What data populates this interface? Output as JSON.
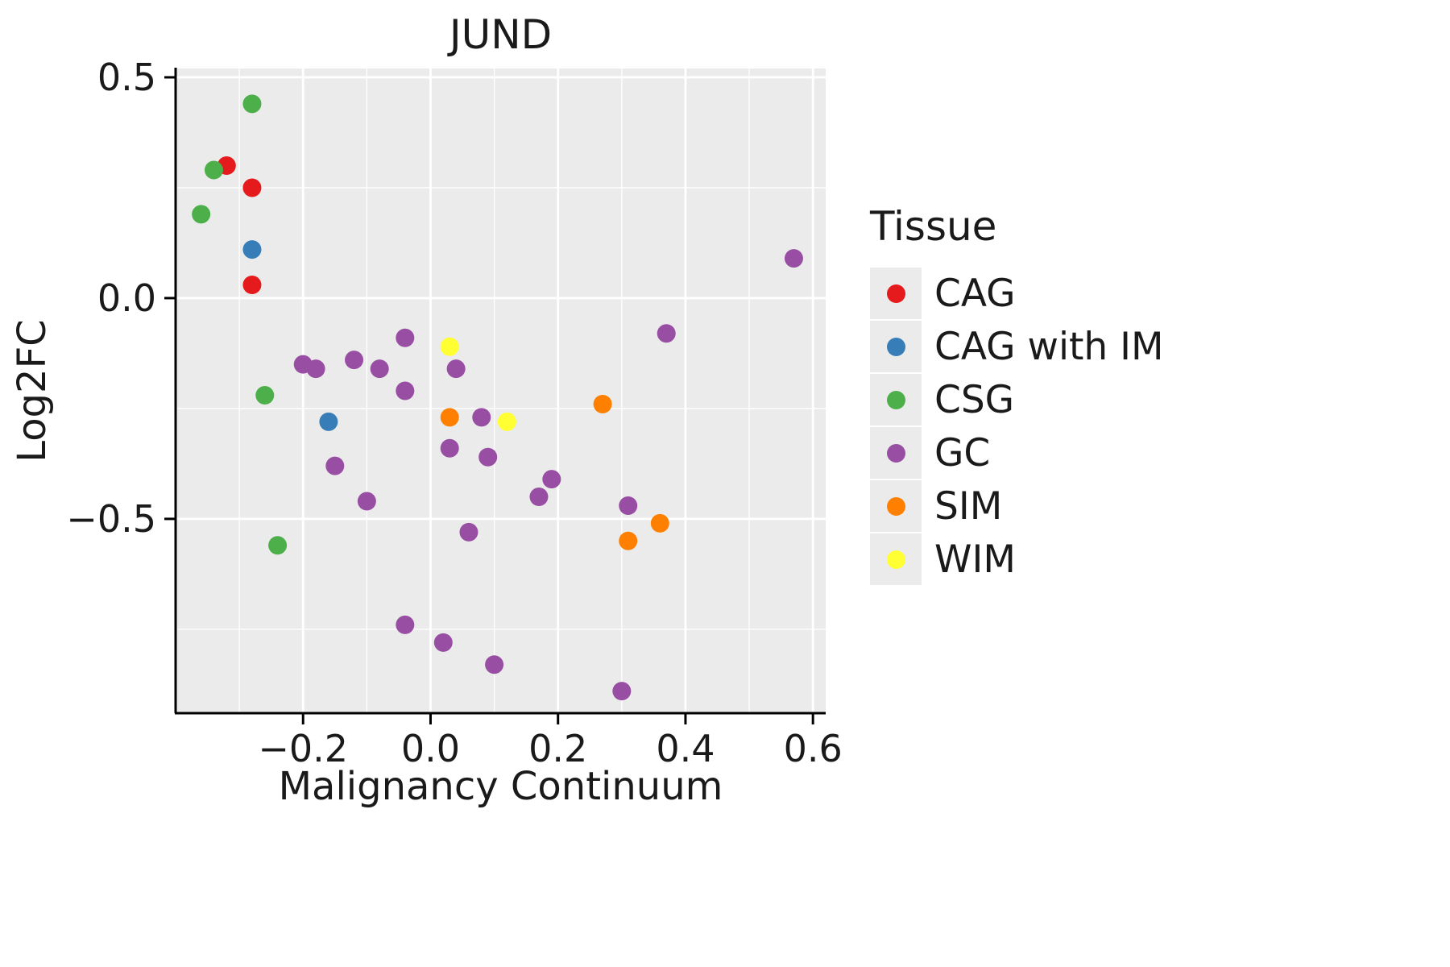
{
  "chart_data": {
    "type": "scatter",
    "title": "JUND",
    "xlabel": "Malignancy Continuum",
    "ylabel": "Log2FC",
    "legend_title": "Tissue",
    "legend_position": "right",
    "grid": true,
    "panel_background": "#EBEBEB",
    "grid_color": "#FFFFFF",
    "axis_color": "#000000",
    "xlim": [
      -0.4,
      0.62
    ],
    "ylim": [
      -0.94,
      0.52
    ],
    "x_tick_values": [
      -0.2,
      0.0,
      0.2,
      0.4,
      0.6
    ],
    "x_tick_labels": [
      "−0.2",
      "0.0",
      "0.2",
      "0.4",
      "0.6"
    ],
    "y_tick_values": [
      0.5,
      0.0,
      -0.5
    ],
    "y_tick_labels": [
      "0.5",
      "0.0",
      "−0.5"
    ],
    "x_minor_ticks": [
      -0.3,
      -0.1,
      0.1,
      0.3,
      0.5
    ],
    "y_minor_ticks": [
      0.25,
      -0.25,
      -0.75
    ],
    "point_radius_px": 11.5,
    "series": [
      {
        "name": "CAG",
        "color": "#E41A1C",
        "points": [
          [
            -0.32,
            0.3
          ],
          [
            -0.28,
            0.25
          ],
          [
            -0.28,
            0.03
          ]
        ]
      },
      {
        "name": "CAG with IM",
        "color": "#377EB8",
        "points": [
          [
            -0.28,
            0.11
          ],
          [
            -0.16,
            -0.28
          ]
        ]
      },
      {
        "name": "CSG",
        "color": "#4DAF4A",
        "points": [
          [
            -0.28,
            0.44
          ],
          [
            -0.34,
            0.29
          ],
          [
            -0.36,
            0.19
          ],
          [
            -0.26,
            -0.22
          ],
          [
            -0.24,
            -0.56
          ]
        ]
      },
      {
        "name": "GC",
        "color": "#984EA3",
        "points": [
          [
            0.57,
            0.09
          ],
          [
            0.37,
            -0.08
          ],
          [
            -0.2,
            -0.15
          ],
          [
            -0.18,
            -0.16
          ],
          [
            -0.12,
            -0.14
          ],
          [
            -0.08,
            -0.16
          ],
          [
            -0.04,
            -0.09
          ],
          [
            -0.04,
            -0.21
          ],
          [
            0.04,
            -0.16
          ],
          [
            0.03,
            -0.34
          ],
          [
            0.08,
            -0.27
          ],
          [
            0.09,
            -0.36
          ],
          [
            0.06,
            -0.53
          ],
          [
            -0.15,
            -0.38
          ],
          [
            -0.1,
            -0.46
          ],
          [
            0.17,
            -0.45
          ],
          [
            0.19,
            -0.41
          ],
          [
            0.31,
            -0.47
          ],
          [
            -0.04,
            -0.74
          ],
          [
            0.02,
            -0.78
          ],
          [
            0.1,
            -0.83
          ],
          [
            0.3,
            -0.89
          ]
        ]
      },
      {
        "name": "SIM",
        "color": "#FF7F00",
        "points": [
          [
            0.03,
            -0.27
          ],
          [
            0.27,
            -0.24
          ],
          [
            0.31,
            -0.55
          ],
          [
            0.36,
            -0.51
          ]
        ]
      },
      {
        "name": "WIM",
        "color": "#FFFF33",
        "points": [
          [
            0.03,
            -0.11
          ],
          [
            0.12,
            -0.28
          ]
        ]
      }
    ]
  }
}
